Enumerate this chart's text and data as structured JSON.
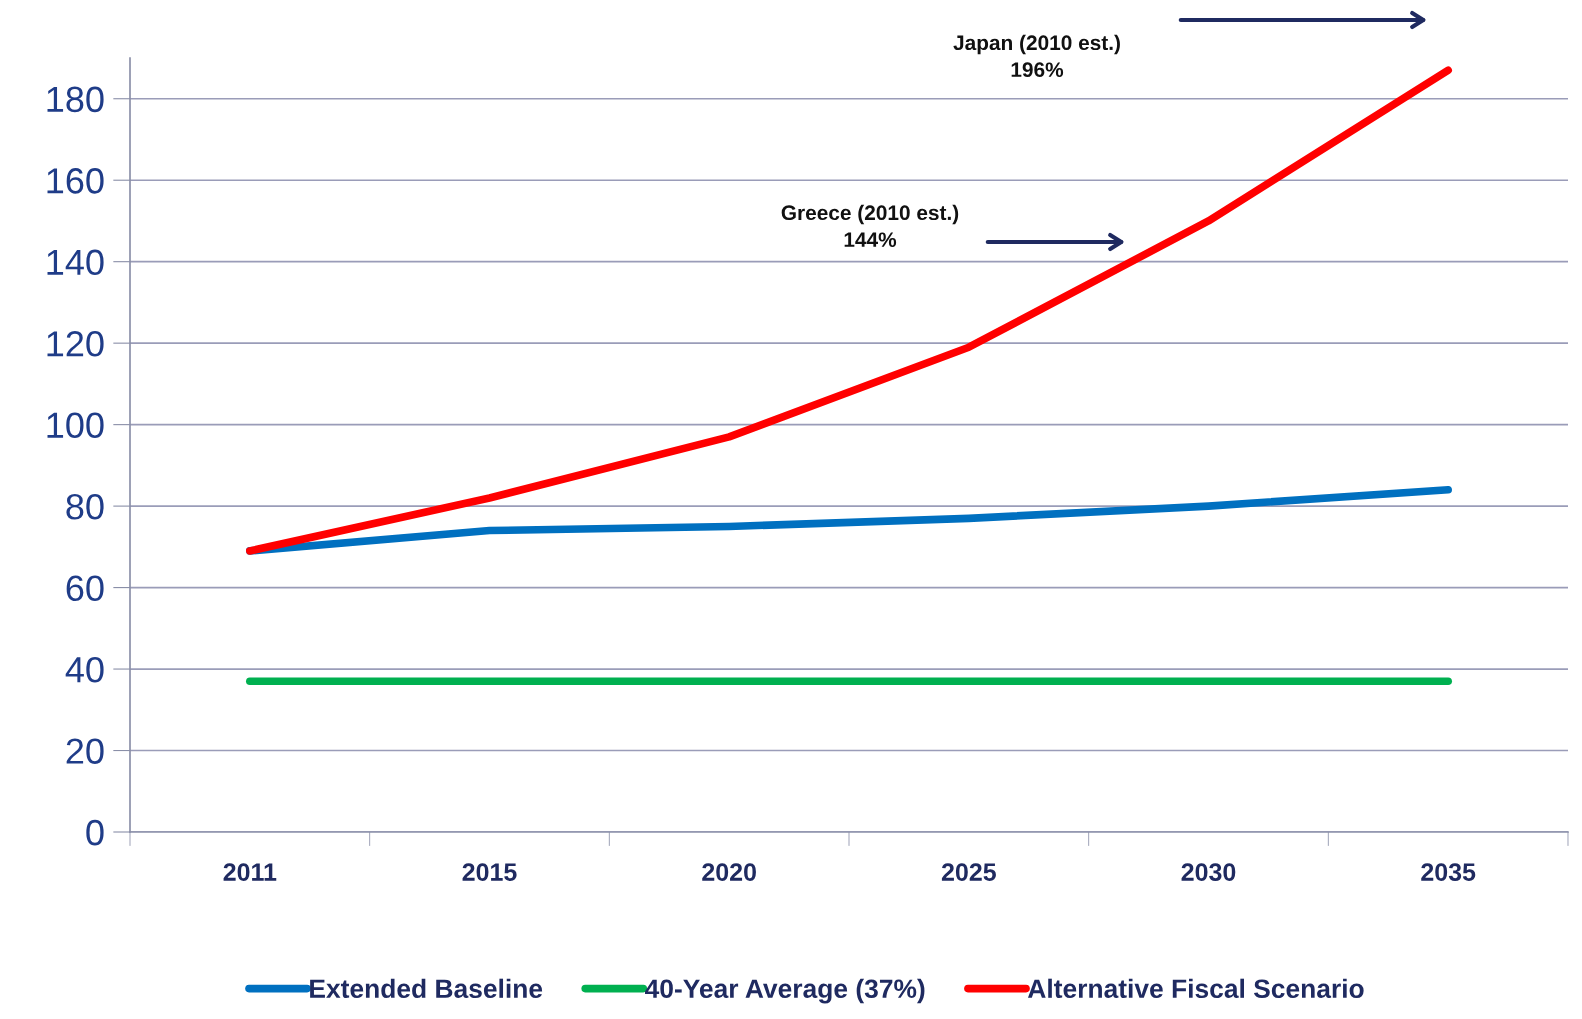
{
  "chart_data": {
    "type": "line",
    "categories": [
      "2011",
      "2015",
      "2020",
      "2025",
      "2030",
      "2035"
    ],
    "series": [
      {
        "name": "Extended Baseline",
        "color": "#0070c0",
        "values": [
          69,
          74,
          75,
          77,
          80,
          84
        ]
      },
      {
        "name": "40-Year Average (37%)",
        "color": "#00b050",
        "values": [
          37,
          37,
          37,
          37,
          37,
          37
        ]
      },
      {
        "name": "Alternative Fiscal Scenario",
        "color": "#ff0000",
        "values": [
          69,
          82,
          97,
          119,
          150,
          187
        ]
      }
    ],
    "ylim": [
      0,
      190
    ],
    "yticks": [
      0,
      20,
      40,
      60,
      80,
      100,
      120,
      140,
      160,
      180
    ],
    "grid": "y",
    "legend": "bottom",
    "marker": "none",
    "line_style": "solid",
    "annotations": [
      "Japan (2010 est.)\n196%",
      "Greece (2010 est.)\n144%"
    ]
  }
}
